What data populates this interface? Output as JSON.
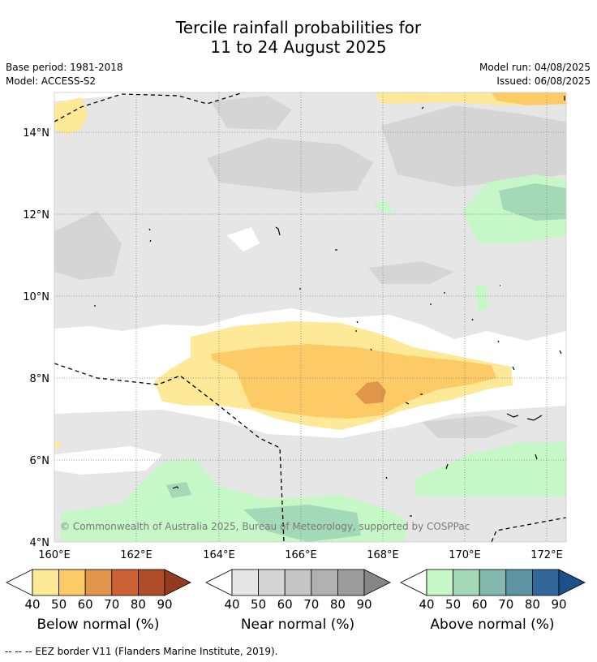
{
  "title": {
    "line1": "Tercile rainfall probabilities for",
    "line2": "11 to 24 August 2025"
  },
  "meta": {
    "base_period": "Base period: 1981-2018",
    "model": "Model: ACCESS-S2",
    "model_run": "Model run: 04/08/2025",
    "issued": "Issued: 06/08/2025"
  },
  "map": {
    "lat_labels": [
      "14°N",
      "12°N",
      "10°N",
      "8°N",
      "6°N",
      "4°N"
    ],
    "lon_labels": [
      "160°E",
      "162°E",
      "164°E",
      "166°E",
      "168°E",
      "170°E",
      "172°E"
    ],
    "copyright": "© Commonwealth of Australia 2025, Bureau of Meteorology, supported by COSPPac",
    "colors": {
      "below": [
        "#fee999",
        "#fdcb66",
        "#e1954b",
        "#cc6136",
        "#b04d29",
        "#943b1f"
      ],
      "near": [
        "#e6e6e6",
        "#d5d5d5",
        "#c5c5c5",
        "#b0b0b0",
        "#9c9c9c",
        "#868686"
      ],
      "above": [
        "#c6f7c6",
        "#a4d9b8",
        "#82b8ad",
        "#5e94a2",
        "#336699",
        "#1d4f8a"
      ]
    }
  },
  "legends": [
    {
      "caption": "Below normal (%)",
      "ticks": [
        "40",
        "50",
        "60",
        "70",
        "80",
        "90"
      ]
    },
    {
      "caption": "Near normal (%)",
      "ticks": [
        "40",
        "50",
        "60",
        "70",
        "80",
        "90"
      ]
    },
    {
      "caption": "Above normal (%)",
      "ticks": [
        "40",
        "50",
        "60",
        "70",
        "80",
        "90"
      ]
    }
  ],
  "footnote": "-- -- -- EEZ border V11 (Flanders Marine Institute, 2019)."
}
